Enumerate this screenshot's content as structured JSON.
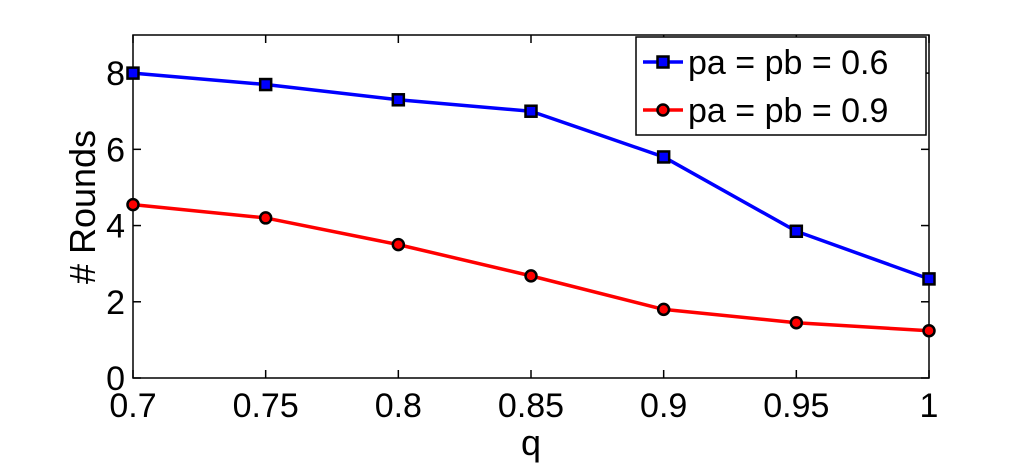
{
  "chart_data": {
    "type": "line",
    "xlabel": "q",
    "ylabel": "# Rounds",
    "x": [
      0.7,
      0.75,
      0.8,
      0.85,
      0.9,
      0.95,
      1
    ],
    "xtick_labels": [
      "0.7",
      "0.75",
      "0.8",
      "0.85",
      "0.9",
      "0.95",
      "1"
    ],
    "ytick_values": [
      0,
      2,
      4,
      6,
      8
    ],
    "ytick_labels": [
      "0",
      "2",
      "4",
      "6",
      "8"
    ],
    "xlim": [
      0.7,
      1
    ],
    "ylim": [
      0,
      9
    ],
    "grid": false,
    "legend_position": "top-right",
    "series": [
      {
        "name": "pa = pb = 0.6",
        "color": "#0000ff",
        "marker": "square",
        "values": [
          8.0,
          7.7,
          7.3,
          7.0,
          5.8,
          3.85,
          2.6
        ]
      },
      {
        "name": "pa = pb = 0.9",
        "color": "#ff0000",
        "marker": "circle",
        "values": [
          4.55,
          4.2,
          3.5,
          2.68,
          1.8,
          1.45,
          1.24
        ]
      }
    ]
  }
}
